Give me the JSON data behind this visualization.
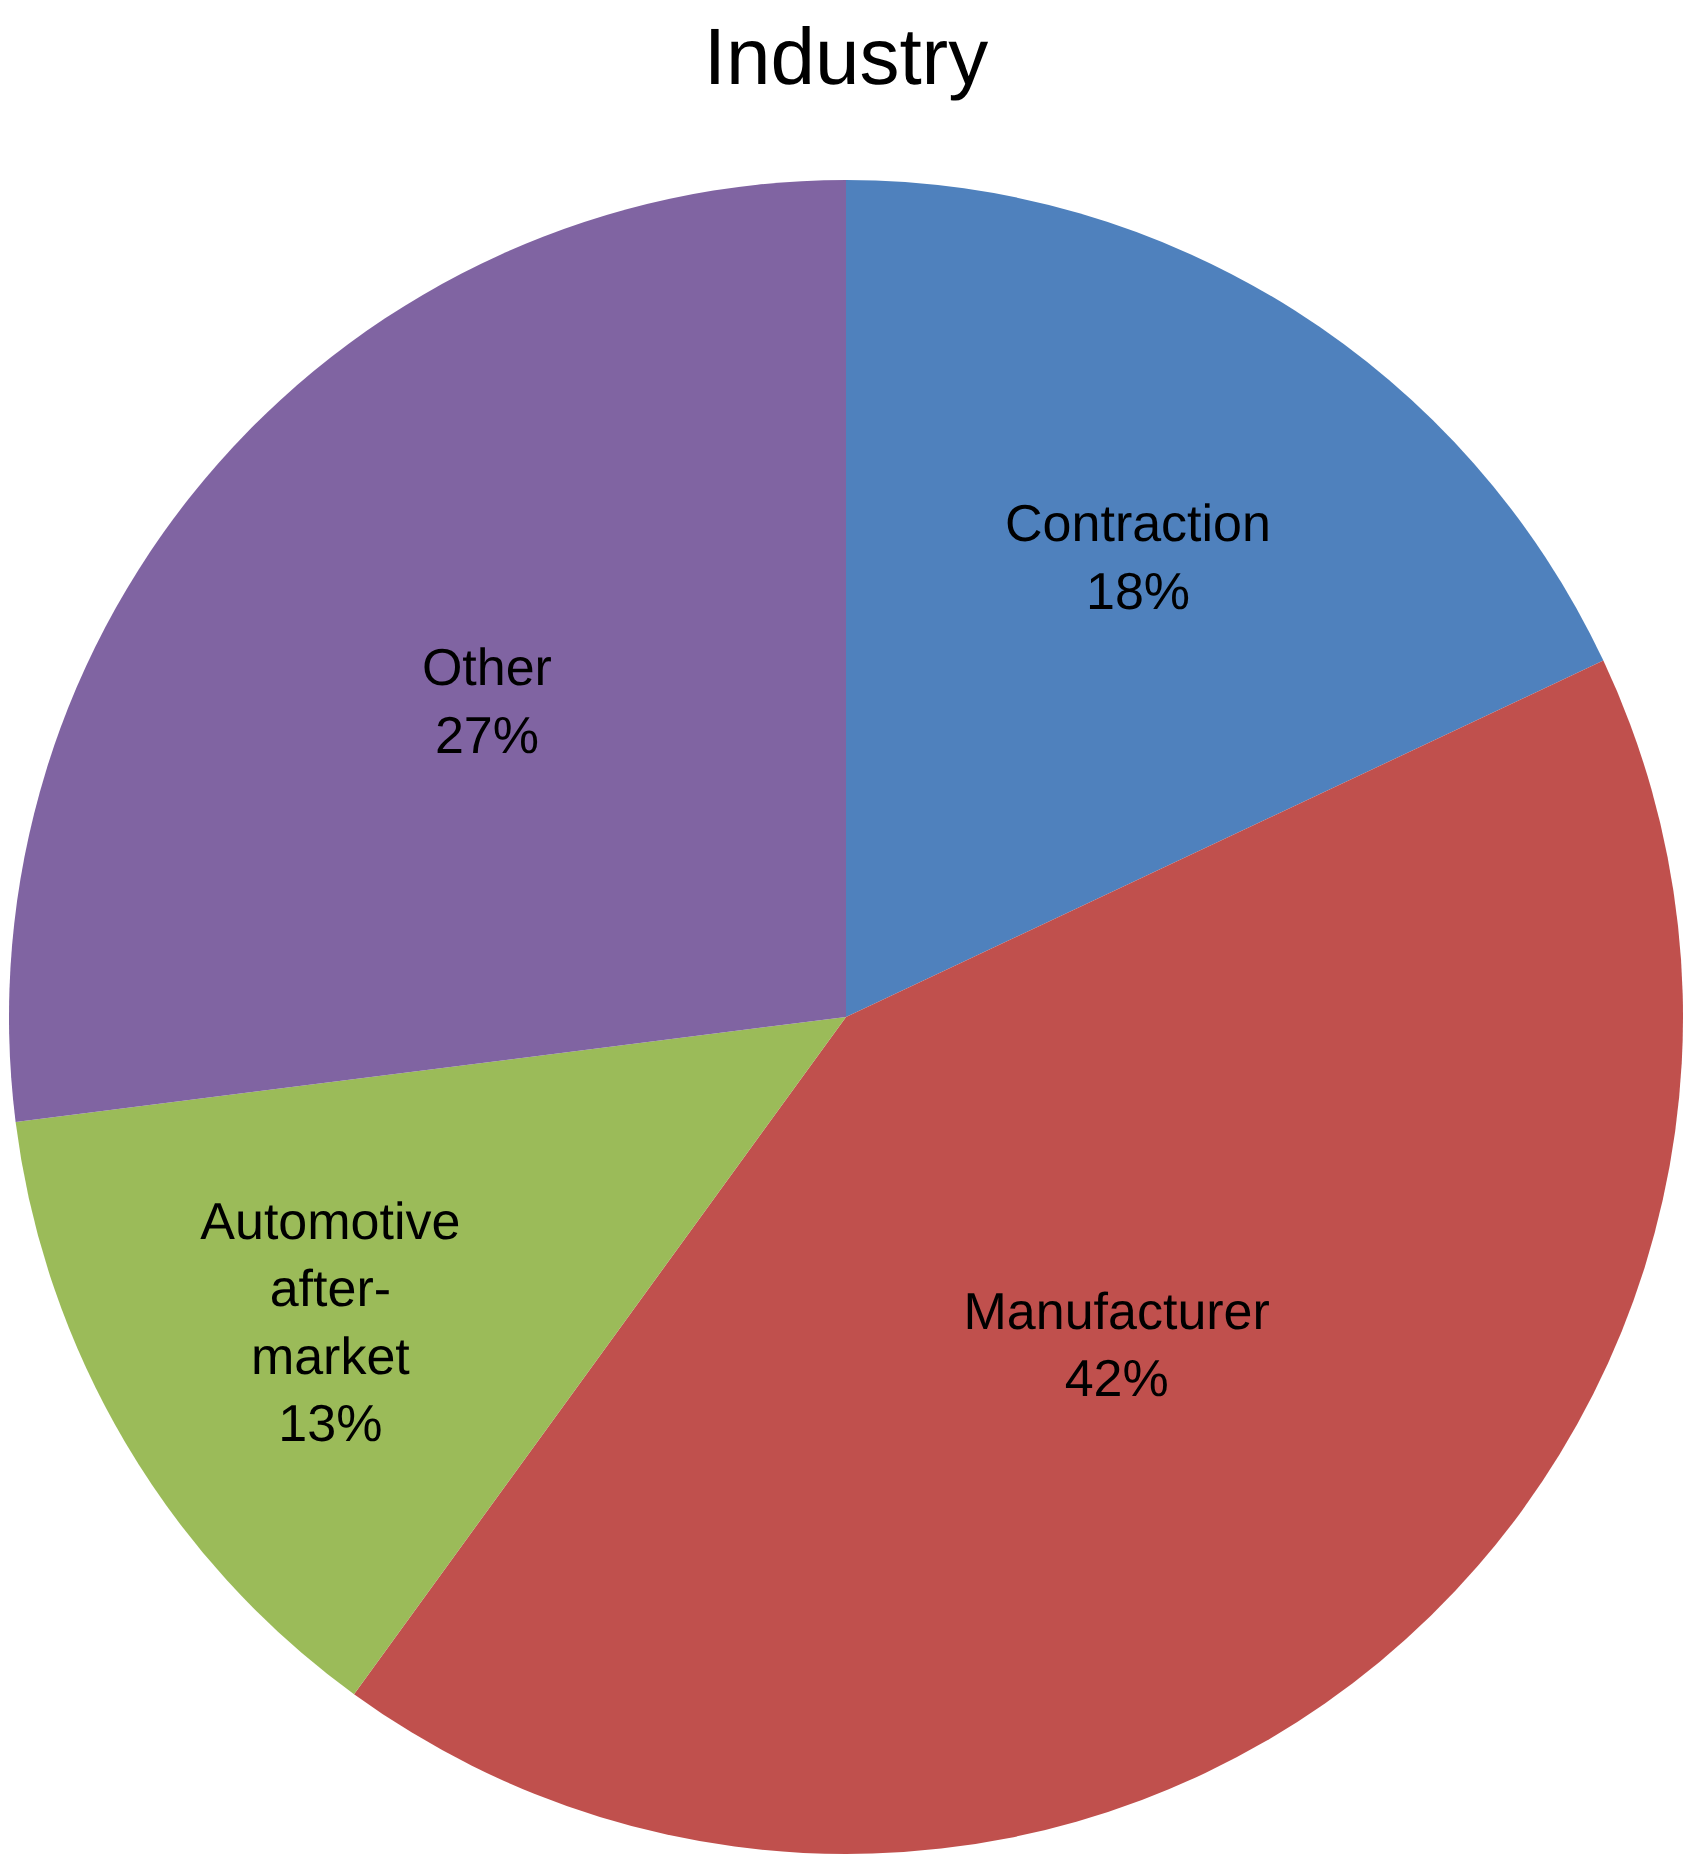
{
  "chart_data": {
    "type": "pie",
    "title": "Industry",
    "categories": [
      "Contraction",
      "Manufacturer",
      "Automotive after-market",
      "Other"
    ],
    "values": [
      18,
      42,
      13,
      27
    ],
    "value_labels": [
      "18%",
      "42%",
      "13%",
      "27%"
    ],
    "colors": [
      "#4f81bd",
      "#c0504d",
      "#9bbb59",
      "#8064a2"
    ],
    "legend": false
  }
}
